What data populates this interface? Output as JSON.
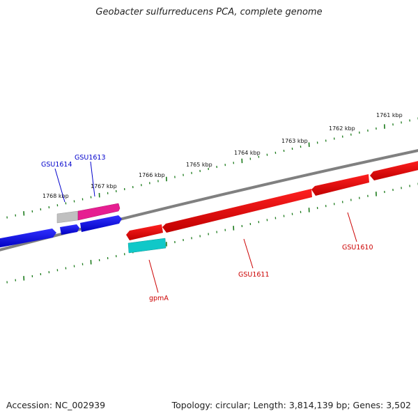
{
  "title": "Geobacter sulfurreducens PCA, complete genome",
  "footer": {
    "accession": "Accession: NC_002939",
    "stats": "Topology: circular; Length: 3,814,139 bp; Genes: 3,502"
  },
  "scale_labels": [
    "1761 kbp",
    "1762 kbp",
    "1763 kbp",
    "1764 kbp",
    "1765 kbp",
    "1766 kbp",
    "1767 kbp",
    "1768 kbp"
  ],
  "gene_labels": {
    "GSU1614": "GSU1614",
    "GSU1613": "GSU1613",
    "GSU1610": "GSU1610",
    "GSU1611": "GSU1611",
    "gpmA": "gpmA"
  },
  "colors": {
    "backbone": "#808080",
    "tick": "#1a7a1a",
    "forward_gene": "#0000dd",
    "forward_label": "#0000cc",
    "pink_gene": "#e0208f",
    "gray_gene": "#b8b8b8",
    "reverse_gene": "#dd0000",
    "reverse_label": "#cc0000",
    "cyan_gene": "#10c8c8"
  }
}
